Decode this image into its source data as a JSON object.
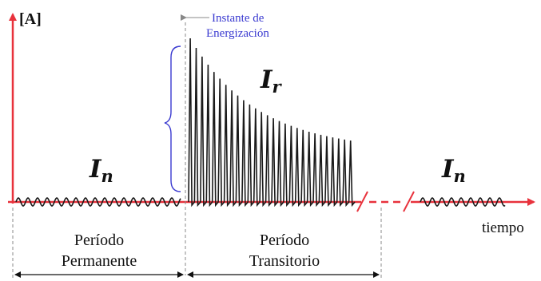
{
  "axis": {
    "y_label": "[A]",
    "x_label": "tiempo"
  },
  "annotation": {
    "instant_line1": "Instante de",
    "instant_line2": "Energización"
  },
  "currents": {
    "steady_left": {
      "symbol": "I",
      "subscript": "n"
    },
    "inrush": {
      "symbol": "I",
      "subscript": "r"
    },
    "steady_right": {
      "symbol": "I",
      "subscript": "n"
    }
  },
  "periods": {
    "permanent_line1": "Período",
    "permanent_line2": "Permanente",
    "transient_line1": "Período",
    "transient_line2": "Transitorio"
  },
  "colors": {
    "axis": "#e8323c",
    "waveform": "#1a1a1a",
    "annotation": "#3a3ad0",
    "text": "#111111",
    "guides": "#888888"
  }
}
